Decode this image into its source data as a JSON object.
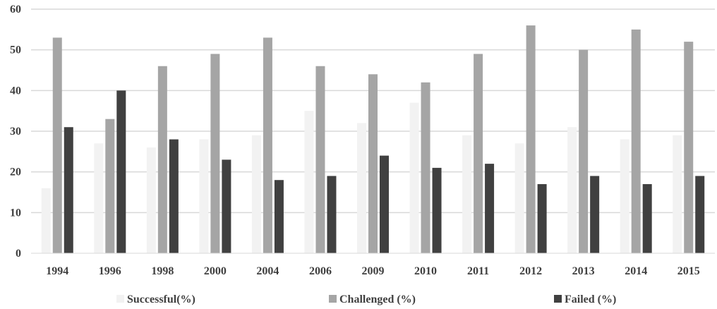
{
  "chart_data": {
    "type": "bar",
    "title": "",
    "xlabel": "",
    "ylabel": "",
    "ylim": [
      0,
      60
    ],
    "yticks": [
      0,
      10,
      20,
      30,
      40,
      50,
      60
    ],
    "grid": true,
    "legend_position": "bottom",
    "categories": [
      "1994",
      "1996",
      "1998",
      "2000",
      "2004",
      "2006",
      "2009",
      "2010",
      "2011",
      "2012",
      "2013",
      "2014",
      "2015"
    ],
    "series": [
      {
        "name": "Successful(%)",
        "color": "#f2f2f2",
        "values": [
          16,
          27,
          26,
          28,
          29,
          35,
          32,
          37,
          29,
          27,
          31,
          28,
          29
        ]
      },
      {
        "name": "Challenged (%)",
        "color": "#a5a5a5",
        "values": [
          53,
          33,
          46,
          49,
          53,
          46,
          44,
          42,
          49,
          56,
          50,
          55,
          52
        ]
      },
      {
        "name": "Failed (%)",
        "color": "#404040",
        "values": [
          31,
          40,
          28,
          23,
          18,
          19,
          24,
          21,
          22,
          17,
          19,
          17,
          19
        ]
      }
    ]
  }
}
